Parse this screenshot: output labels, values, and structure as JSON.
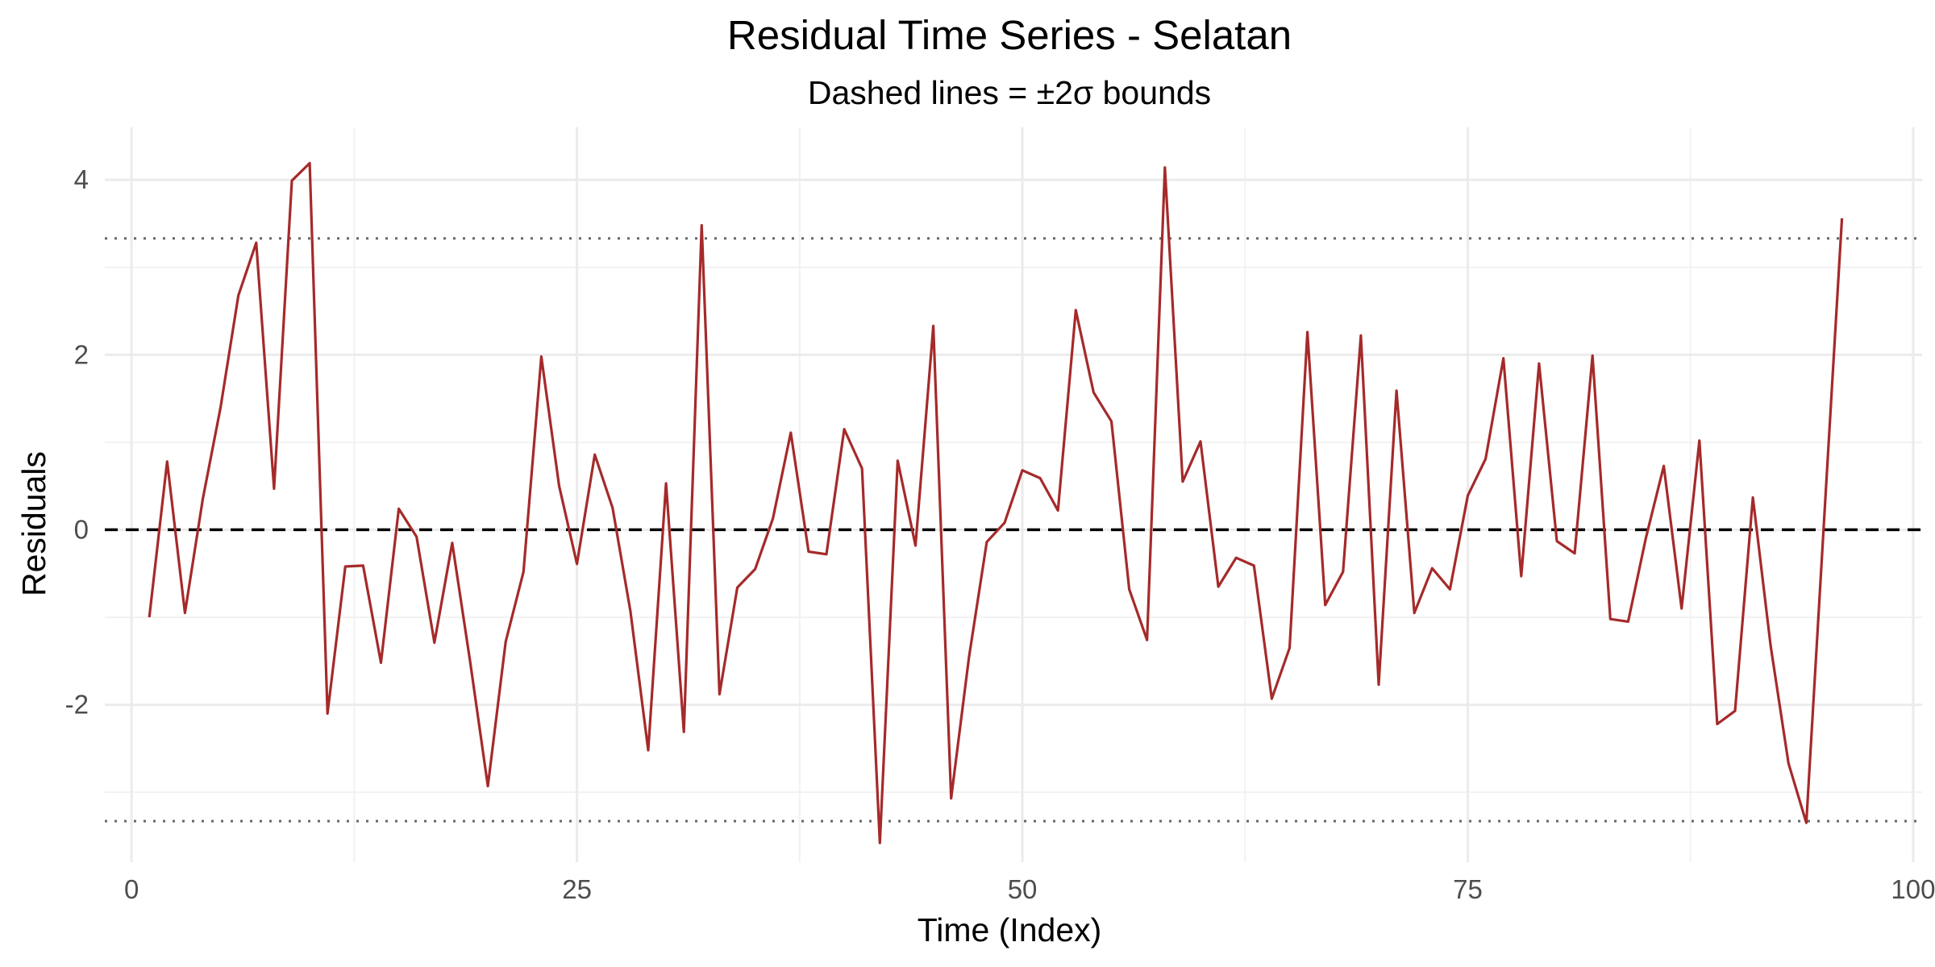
{
  "chart_data": {
    "type": "line",
    "title": "Residual Time Series - Selatan",
    "subtitle": "Dashed lines = ±2σ bounds",
    "xlabel": "Time (Index)",
    "ylabel": "Residuals",
    "xlim": [
      -1.5,
      100.5
    ],
    "ylim": [
      -3.8,
      4.6
    ],
    "x_ticks": [
      0,
      25,
      50,
      75,
      100
    ],
    "x_tick_labels": [
      "0",
      "25",
      "50",
      "75",
      "100"
    ],
    "y_ticks": [
      -2,
      0,
      2,
      4
    ],
    "y_tick_labels": [
      "-2",
      "0",
      "2",
      "4"
    ],
    "x_minor_ticks": [
      12.5,
      37.5,
      62.5,
      87.5
    ],
    "y_minor_ticks": [
      -3,
      -1,
      1,
      3
    ],
    "grid": true,
    "reference_lines": {
      "zero": 0,
      "upper_bound": 3.33,
      "lower_bound": -3.33
    },
    "colors": {
      "series": "#A52A2A",
      "zero_line": "#000000",
      "bounds": "#666666",
      "grid_major": "#EBEBEB",
      "grid_minor": "#F2F2F2"
    },
    "series": [
      {
        "x": [
          1,
          2,
          3,
          4,
          5,
          6,
          7,
          8,
          9,
          10,
          11,
          12,
          13,
          14,
          15,
          16,
          17,
          18,
          19,
          20,
          21,
          22,
          23,
          24,
          25,
          26,
          27,
          28,
          29,
          30,
          31,
          32,
          33,
          34,
          35,
          36,
          37,
          38,
          39,
          40,
          41,
          42,
          43,
          44,
          45,
          46,
          47,
          48,
          49,
          50,
          51,
          52,
          53,
          54,
          55,
          56,
          57,
          58,
          59,
          60,
          61,
          62,
          63,
          64,
          65,
          66,
          67,
          68,
          69,
          70,
          71,
          72,
          73,
          74,
          75,
          76,
          77,
          78,
          79,
          80,
          81,
          82,
          83,
          84,
          85,
          86,
          87,
          88,
          89,
          90,
          91,
          92,
          93,
          94,
          95,
          96
        ],
        "values": [
          -1.0,
          0.78,
          -0.95,
          0.35,
          1.4,
          2.68,
          3.28,
          0.47,
          3.99,
          4.19,
          -2.1,
          -0.42,
          -0.41,
          -1.52,
          0.24,
          -0.08,
          -1.29,
          -0.15,
          -1.5,
          -2.93,
          -1.28,
          -0.48,
          1.98,
          0.5,
          -0.39,
          0.86,
          0.25,
          -0.93,
          -2.52,
          0.53,
          -2.31,
          3.48,
          -1.88,
          -0.66,
          -0.45,
          0.13,
          1.11,
          -0.25,
          -0.28,
          1.15,
          0.7,
          -3.58,
          0.79,
          -0.18,
          2.33,
          -3.07,
          -1.46,
          -0.14,
          0.08,
          0.68,
          0.59,
          0.22,
          2.51,
          1.57,
          1.24,
          -0.68,
          -1.26,
          4.14,
          0.55,
          1.01,
          -0.65,
          -0.32,
          -0.41,
          -1.93,
          -1.35,
          2.26,
          -0.86,
          -0.48,
          2.22,
          -1.77,
          1.59,
          -0.95,
          -0.44,
          -0.68,
          0.39,
          0.81,
          1.96,
          -0.53,
          1.9,
          -0.13,
          -0.27,
          1.99,
          -1.02,
          -1.05,
          -0.09,
          0.73,
          -0.9,
          1.02,
          -2.22,
          -2.07,
          0.37,
          -1.33,
          -2.67,
          -3.35,
          0.12,
          3.56
        ]
      }
    ]
  }
}
